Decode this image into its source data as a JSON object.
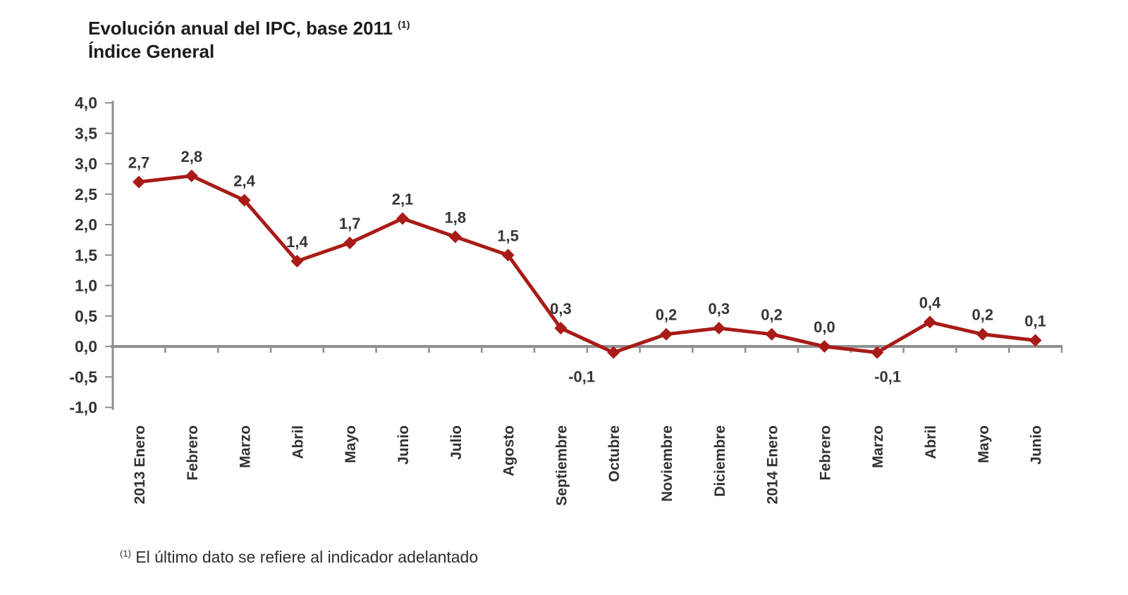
{
  "chart_data": {
    "type": "line",
    "title": "Evolución anual del IPC, base 2011",
    "title_superscript": "(1)",
    "subtitle": "Índice General",
    "categories": [
      "2013 Enero",
      "Febrero",
      "Marzo",
      "Abril",
      "Mayo",
      "Junio",
      "Julio",
      "Agosto",
      "Septiembre",
      "Octubre",
      "Noviembre",
      "Diciembre",
      "2014 Enero",
      "Febrero",
      "Marzo",
      "Abril",
      "Mayo",
      "Junio"
    ],
    "values": [
      2.7,
      2.8,
      2.4,
      1.4,
      1.7,
      2.1,
      1.8,
      1.5,
      0.3,
      -0.1,
      0.2,
      0.3,
      0.2,
      0.0,
      -0.1,
      0.4,
      0.2,
      0.1
    ],
    "point_labels": [
      "2,7",
      "2,8",
      "2,4",
      "1,4",
      "1,7",
      "2,1",
      "1,8",
      "1,5",
      "0,3",
      "-0,1",
      "0,2",
      "0,3",
      "0,2",
      "0,0",
      "-0,1",
      "0,4",
      "0,2",
      "0,1"
    ],
    "ylim": [
      -1.0,
      4.0
    ],
    "ytick_step": 0.5,
    "ytick_labels": [
      "4,0",
      "3,5",
      "3,0",
      "2,5",
      "2,0",
      "1,5",
      "1,0",
      "0,5",
      "0,0",
      "-0,5",
      "-1,0"
    ],
    "grid": false,
    "legend": "none",
    "line_color": "#A81B17",
    "axis_color": "#8F8F8F",
    "text_color": "#333333",
    "footnote_marker": "(1)",
    "footnote": "El último dato se refiere al indicador adelantado"
  }
}
